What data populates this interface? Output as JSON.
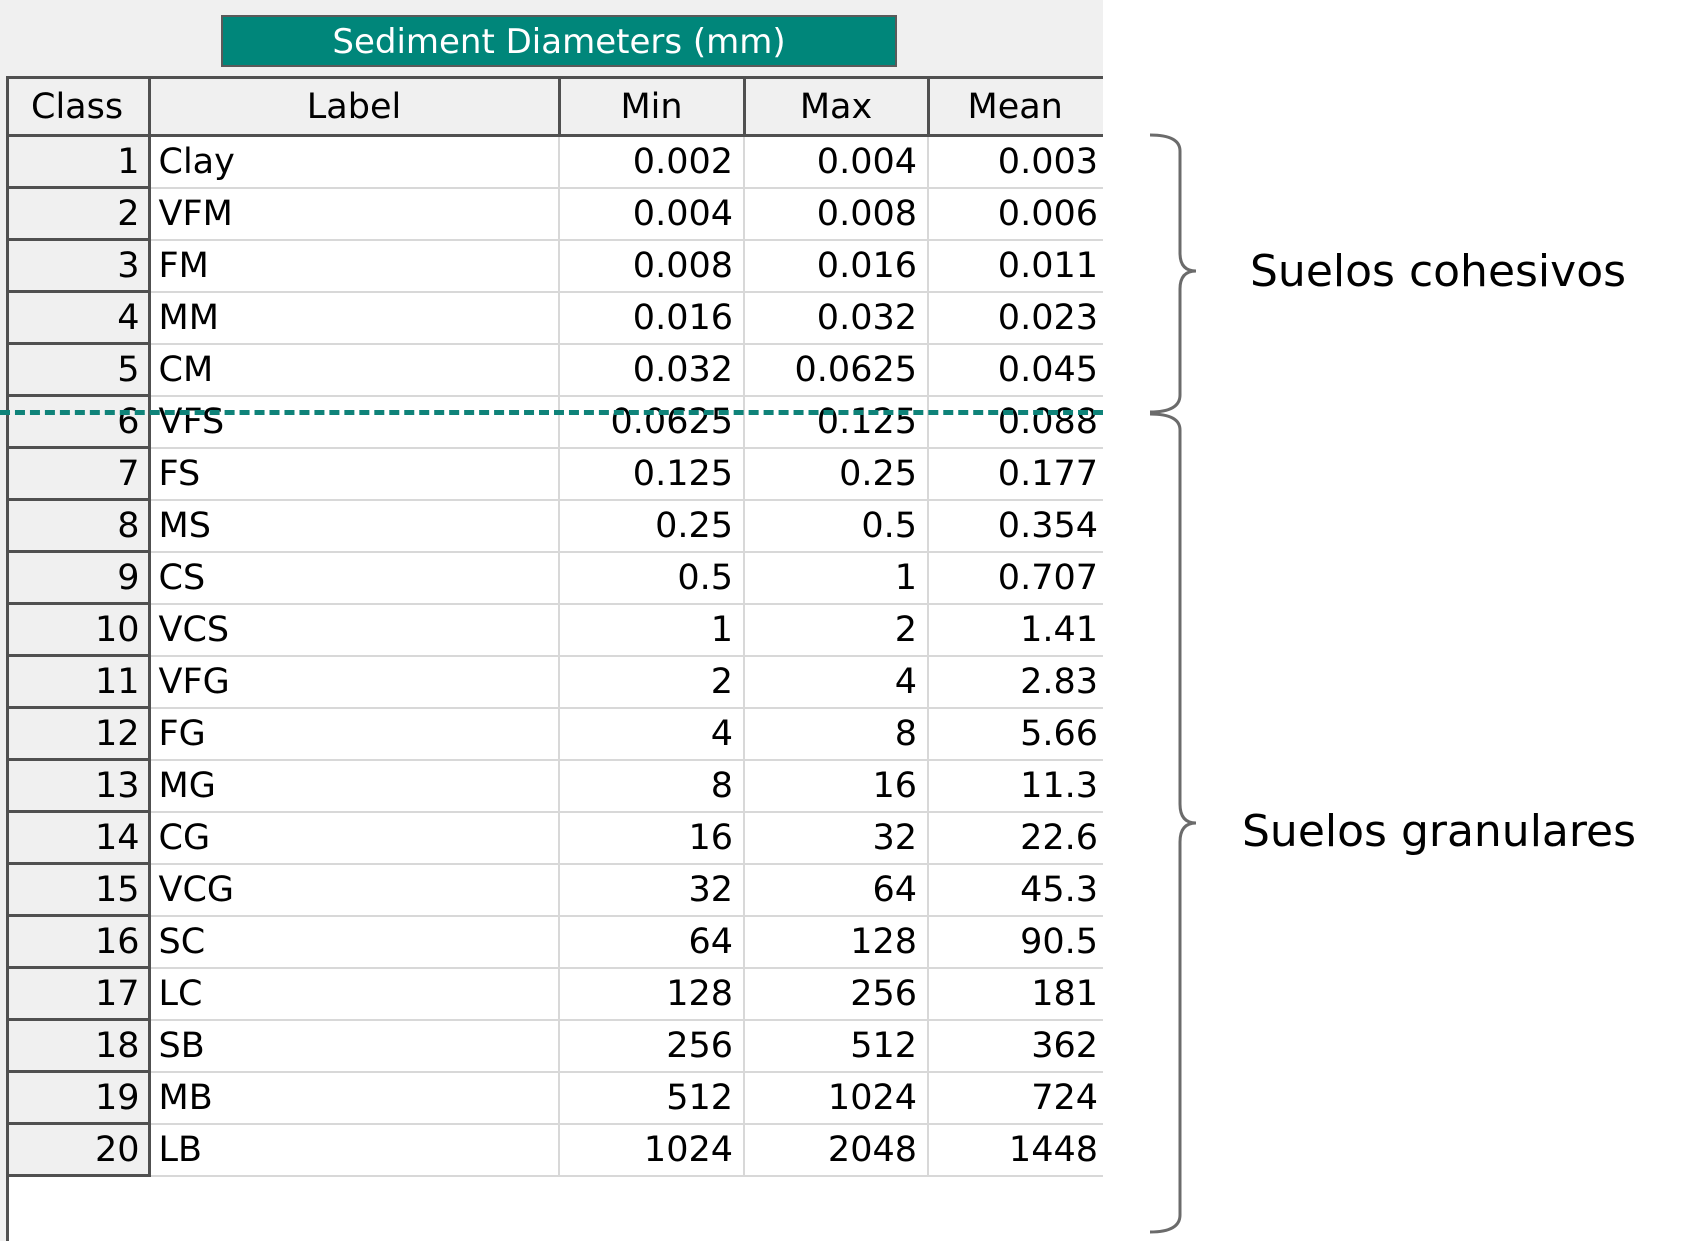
{
  "group_header": "Sediment Diameters (mm)",
  "columns": {
    "class": "Class",
    "label": "Label",
    "min": "Min",
    "max": "Max",
    "mean": "Mean"
  },
  "rows": [
    {
      "class": "1",
      "label": "Clay",
      "min": "0.002",
      "max": "0.004",
      "mean": "0.003"
    },
    {
      "class": "2",
      "label": "VFM",
      "min": "0.004",
      "max": "0.008",
      "mean": "0.006"
    },
    {
      "class": "3",
      "label": "FM",
      "min": "0.008",
      "max": "0.016",
      "mean": "0.011"
    },
    {
      "class": "4",
      "label": "MM",
      "min": "0.016",
      "max": "0.032",
      "mean": "0.023"
    },
    {
      "class": "5",
      "label": "CM",
      "min": "0.032",
      "max": "0.0625",
      "mean": "0.045"
    },
    {
      "class": "6",
      "label": "VFS",
      "min": "0.0625",
      "max": "0.125",
      "mean": "0.088"
    },
    {
      "class": "7",
      "label": "FS",
      "min": "0.125",
      "max": "0.25",
      "mean": "0.177"
    },
    {
      "class": "8",
      "label": "MS",
      "min": "0.25",
      "max": "0.5",
      "mean": "0.354"
    },
    {
      "class": "9",
      "label": "CS",
      "min": "0.5",
      "max": "1",
      "mean": "0.707"
    },
    {
      "class": "10",
      "label": "VCS",
      "min": "1",
      "max": "2",
      "mean": "1.41"
    },
    {
      "class": "11",
      "label": "VFG",
      "min": "2",
      "max": "4",
      "mean": "2.83"
    },
    {
      "class": "12",
      "label": "FG",
      "min": "4",
      "max": "8",
      "mean": "5.66"
    },
    {
      "class": "13",
      "label": "MG",
      "min": "8",
      "max": "16",
      "mean": "11.3"
    },
    {
      "class": "14",
      "label": "CG",
      "min": "16",
      "max": "32",
      "mean": "22.6"
    },
    {
      "class": "15",
      "label": "VCG",
      "min": "32",
      "max": "64",
      "mean": "45.3"
    },
    {
      "class": "16",
      "label": "SC",
      "min": "64",
      "max": "128",
      "mean": "90.5"
    },
    {
      "class": "17",
      "label": "LC",
      "min": "128",
      "max": "256",
      "mean": "181"
    },
    {
      "class": "18",
      "label": "SB",
      "min": "256",
      "max": "512",
      "mean": "362"
    },
    {
      "class": "19",
      "label": "MB",
      "min": "512",
      "max": "1024",
      "mean": "724"
    },
    {
      "class": "20",
      "label": "LB",
      "min": "1024",
      "max": "2048",
      "mean": "1448"
    }
  ],
  "annotations": {
    "cohesive": "Suelos cohesivos",
    "granular": "Suelos granulares"
  },
  "colors": {
    "header_fill": "#00867a",
    "separator": "#0f8379",
    "brace": "#6b6b6b"
  }
}
